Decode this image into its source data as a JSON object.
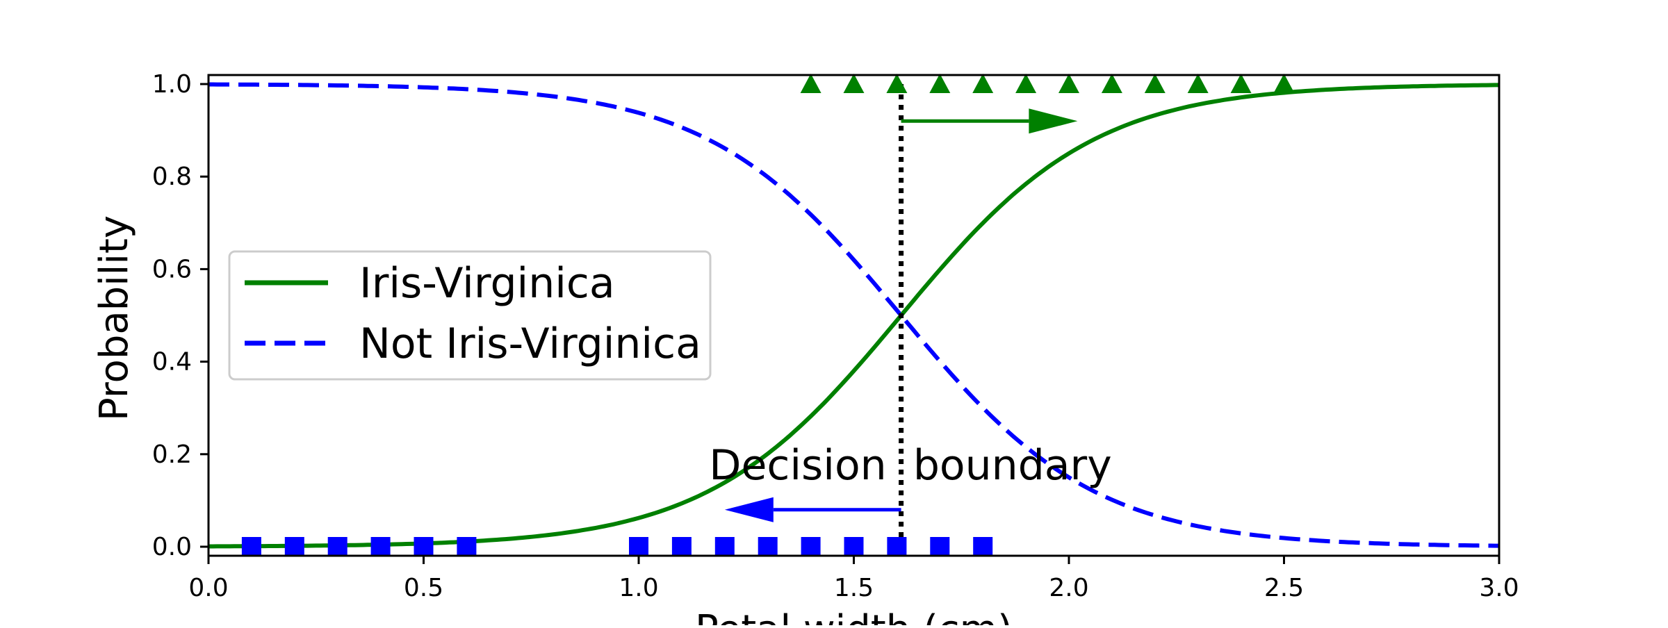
{
  "chart_data": {
    "type": "line",
    "xlabel": "Petal width (cm)",
    "ylabel": "Probability",
    "xlim": [
      0.0,
      3.0
    ],
    "ylim": [
      0.0,
      1.0
    ],
    "x_ticks": [
      "0.0",
      "0.5",
      "1.0",
      "1.5",
      "2.0",
      "2.5",
      "3.0"
    ],
    "y_ticks": [
      "0.0",
      "0.2",
      "0.4",
      "0.6",
      "0.8",
      "1.0"
    ],
    "grid": false,
    "legend_position": "center-left",
    "decision_boundary": 1.61,
    "sigmoid_slope": 4.45,
    "series": [
      {
        "name": "Iris-Virginica",
        "style": "solid",
        "color": "#008000"
      },
      {
        "name": "Not Iris-Virginica",
        "style": "dashed",
        "color": "#0000ff"
      }
    ],
    "scatter": [
      {
        "class": "virginica",
        "marker": "triangle",
        "color": "#008000",
        "y": 1.0,
        "x": [
          1.4,
          1.5,
          1.6,
          1.7,
          1.8,
          1.9,
          2.0,
          2.1,
          2.2,
          2.3,
          2.4,
          2.5
        ]
      },
      {
        "class": "not-virginica",
        "marker": "square",
        "color": "#0000ff",
        "y": 0.0,
        "x": [
          0.1,
          0.2,
          0.3,
          0.4,
          0.5,
          0.6,
          1.0,
          1.1,
          1.2,
          1.3,
          1.4,
          1.5,
          1.6,
          1.7,
          1.8
        ]
      }
    ],
    "annotation": {
      "text": "Decision  boundary",
      "arrows": [
        {
          "direction": "right",
          "color": "#008000",
          "x_start": 1.61,
          "x_end": 2.02,
          "y": 0.92
        },
        {
          "direction": "left",
          "color": "#0000ff",
          "x_start": 1.61,
          "x_end": 1.2,
          "y": 0.08
        }
      ]
    }
  }
}
